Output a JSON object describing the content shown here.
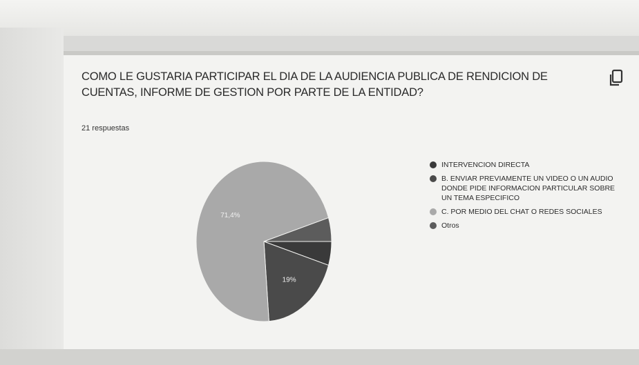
{
  "question": {
    "title": "COMO LE GUSTARIA PARTICIPAR EL DIA DE LA AUDIENCIA PUBLICA DE RENDICION DE CUENTAS, INFORME DE GESTION POR PARTE DE LA ENTIDAD?",
    "responses": "21 respuestas",
    "copy_icon": "copy-icon"
  },
  "chart_data": {
    "type": "pie",
    "categories": [
      "INTERVENCION DIRECTA",
      "B. ENVIAR PREVIAMENTE UN VIDEO O UN AUDIO DONDE PIDE INFORMACION PARTICULAR SOBRE UN TEMA ESPECIFICO",
      "C. POR MEDIO DEL CHAT O REDES SOCIALES",
      "Otros"
    ],
    "values": [
      4.8,
      19,
      71.4,
      4.8
    ],
    "slice_labels": [
      "",
      "19%",
      "71,4%",
      ""
    ],
    "colors": [
      "#3a3a3a",
      "#4a4a4a",
      "#a9a9a9",
      "#5c5c5c"
    ],
    "start": "3 o'clock",
    "direction": "clockwise",
    "legend_position": "right"
  }
}
